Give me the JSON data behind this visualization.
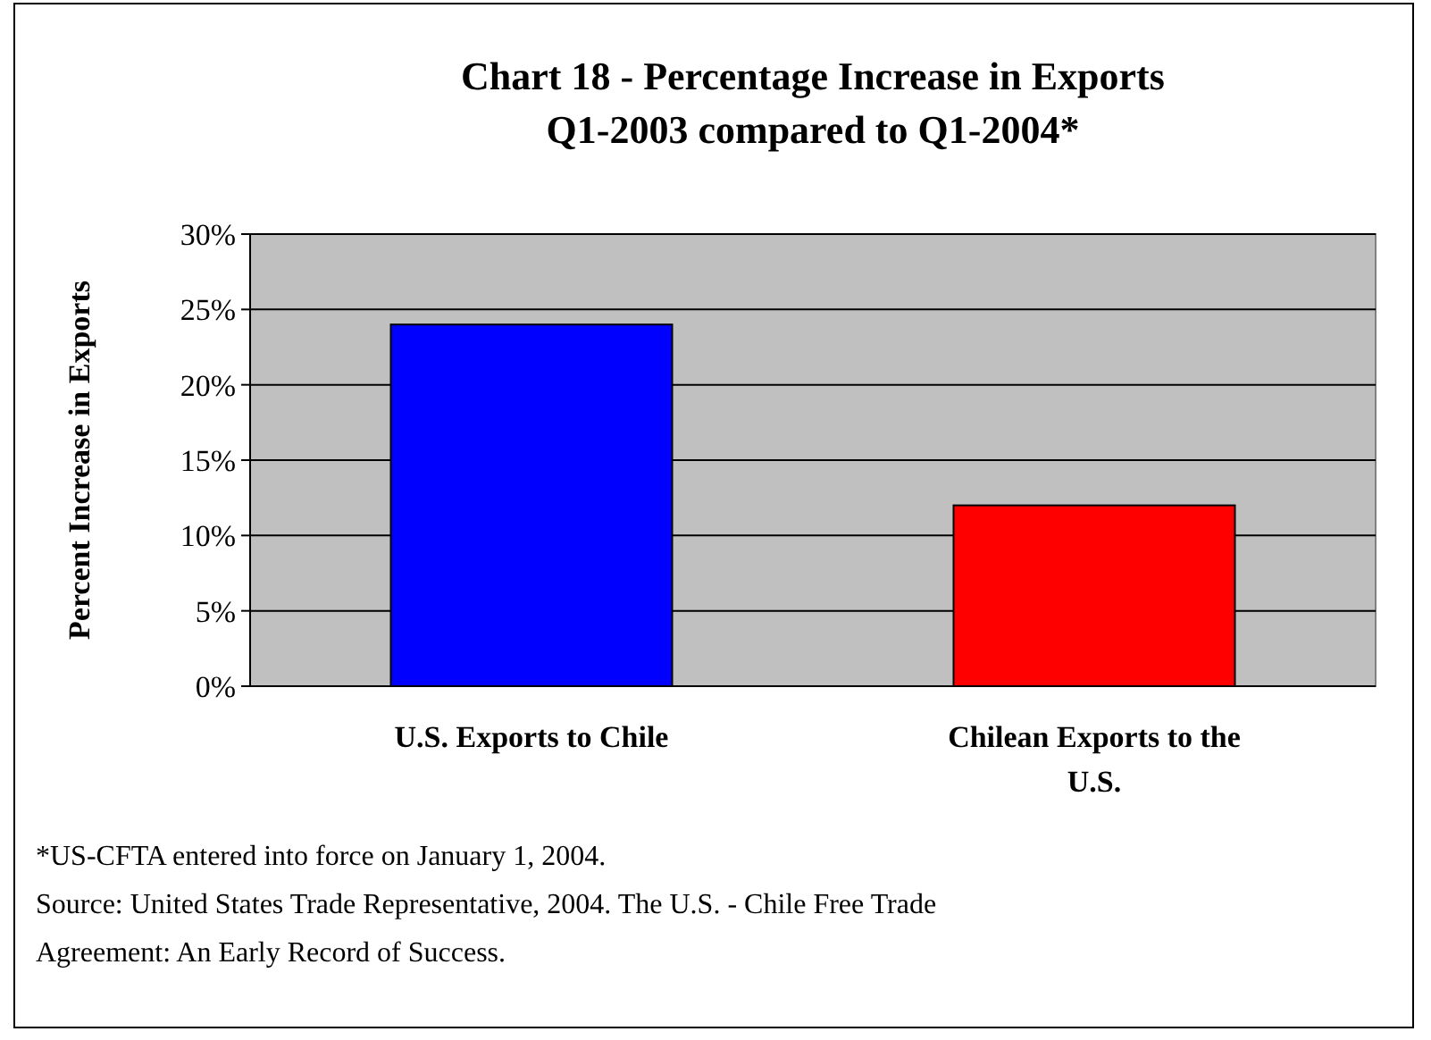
{
  "chart_data": {
    "type": "bar",
    "title": "Chart 18 - Percentage Increase in Exports\nQ1-2003 compared to Q1-2004*",
    "ylabel": "Percent Increase in Exports",
    "categories": [
      "U.S. Exports to Chile",
      "Chilean Exports to the U.S."
    ],
    "values": [
      24,
      12
    ],
    "colors": [
      "#0000ff",
      "#ff0000"
    ],
    "ylim": [
      0,
      30
    ],
    "yticks": [
      {
        "value": 0,
        "label": "0%"
      },
      {
        "value": 5,
        "label": "5%"
      },
      {
        "value": 10,
        "label": "10%"
      },
      {
        "value": 15,
        "label": "15%"
      },
      {
        "value": 20,
        "label": "20%"
      },
      {
        "value": 25,
        "label": "25%"
      },
      {
        "value": 30,
        "label": "30%"
      }
    ],
    "grid": "y",
    "annotations": [
      "*US-CFTA entered into force on January 1, 2004.",
      "Source: United States Trade Representative, 2004.  The U.S. - Chile Free Trade Agreement: An Early Record of Success."
    ]
  }
}
